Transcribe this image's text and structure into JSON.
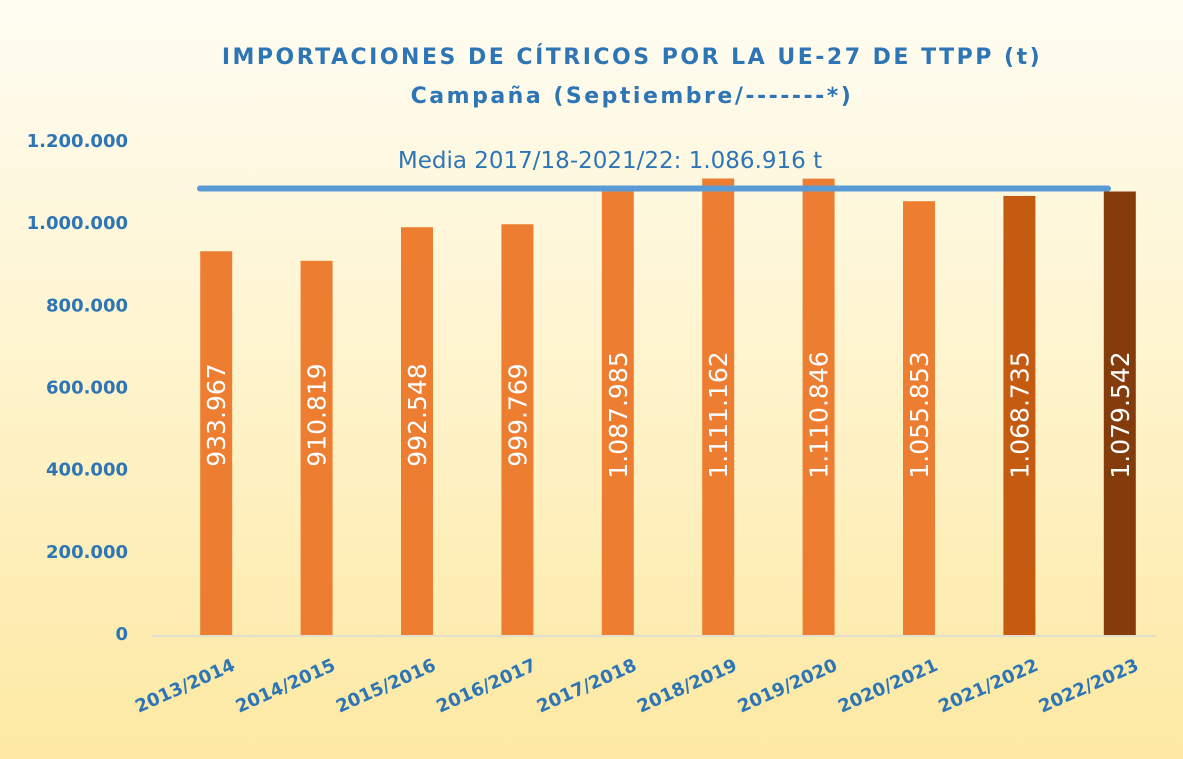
{
  "chart_data": {
    "type": "bar",
    "title": "IMPORTACIONES DE CÍTRICOS POR LA UE-27 DE TTPP (t)",
    "subtitle": "Campaña (Septiembre/-------*)",
    "categories": [
      "2013/2014",
      "2014/2015",
      "2015/2016",
      "2016/2017",
      "2017/2018",
      "2018/2019",
      "2019/2020",
      "2020/2021",
      "2021/2022",
      "2022/2023"
    ],
    "values": [
      933967,
      910819,
      992548,
      999769,
      1087985,
      1111162,
      1110846,
      1055853,
      1068735,
      1079542
    ],
    "value_labels": [
      "933.967",
      "910.819",
      "992.548",
      "999.769",
      "1.087.985",
      "1.111.162",
      "1.110.846",
      "1.055.853",
      "1.068.735",
      "1.079.542"
    ],
    "colors": [
      "#ed7d31",
      "#ed7d31",
      "#ed7d31",
      "#ed7d31",
      "#ed7d31",
      "#ed7d31",
      "#ed7d31",
      "#ed7d31",
      "#c55a11",
      "#843c0c"
    ],
    "ylim": [
      0,
      1200000
    ],
    "yticks": [
      0,
      {
        "value": 200000,
        "label": "200.000"
      },
      {
        "value": 400000,
        "label": "400.000"
      },
      {
        "value": 600000,
        "label": "600.000"
      },
      {
        "value": 800000,
        "label": "800.000"
      },
      {
        "value": 1000000,
        "label": "1.000.000"
      },
      {
        "value": 1200000,
        "label": "1.200.000"
      }
    ],
    "mean_line": {
      "value": 1086916,
      "label": "Media 2017/18-2021/22: 1.086.916 t",
      "color": "#5b9bd5"
    }
  }
}
